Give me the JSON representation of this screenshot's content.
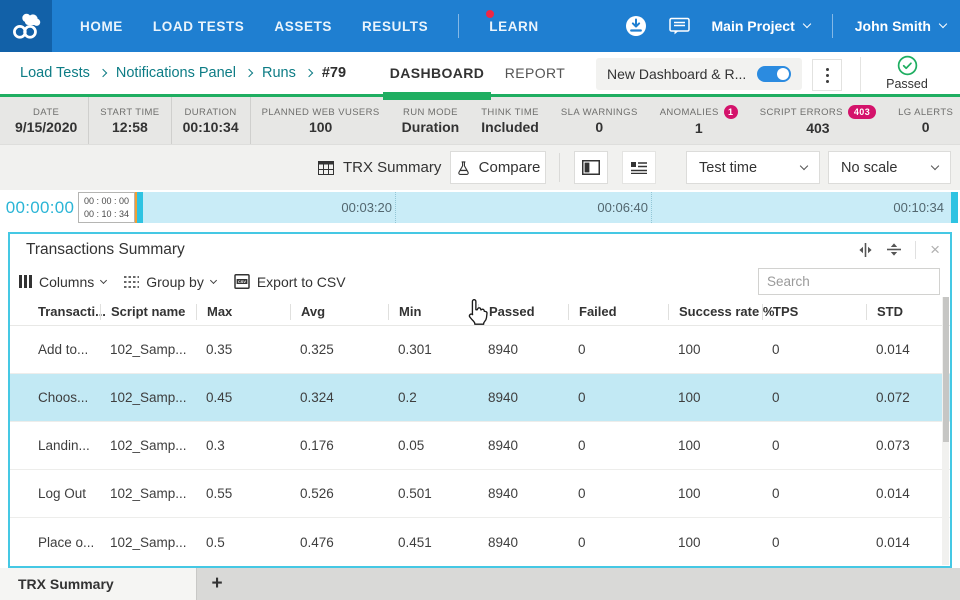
{
  "colors": {
    "nav_blue": "#1f7fd1",
    "logo_blue": "#1261a8",
    "breadcrumb_teal": "#0d7c85",
    "success_green": "#1fae61",
    "alert_pink": "#d4136b",
    "accent_cyan": "#45c8e4",
    "timeline_bg": "#c9ecf7",
    "selected_row_bg": "#c2e9f4"
  },
  "topnav": {
    "nav_items": [
      {
        "label": "HOME",
        "notification": false
      },
      {
        "label": "LOAD TESTS",
        "notification": false
      },
      {
        "label": "ASSETS",
        "notification": false
      },
      {
        "label": "RESULTS",
        "notification": false
      },
      {
        "label": "LEARN",
        "notification": true
      }
    ],
    "project_menu": "Main Project",
    "user_menu": "John Smith"
  },
  "header": {
    "breadcrumb": [
      "Load Tests",
      "Notifications Panel",
      "Runs"
    ],
    "current_run": "#79",
    "tabs": [
      {
        "label": "DASHBOARD",
        "active": true
      },
      {
        "label": "REPORT",
        "active": false
      }
    ],
    "new_dashboard_toggle": {
      "label": "New Dashboard & R...",
      "on": true
    },
    "run_status": "Passed"
  },
  "stats": {
    "left": [
      {
        "label": "DATE",
        "value": "9/15/2020"
      },
      {
        "label": "START TIME",
        "value": "12:58"
      },
      {
        "label": "DURATION",
        "value": "00:10:34"
      },
      {
        "label": "PLANNED WEB VUSERS",
        "value": "100"
      },
      {
        "label": "RUN MODE",
        "value": "Duration"
      },
      {
        "label": "THINK TIME",
        "value": "Included"
      }
    ],
    "right": [
      {
        "label": "SLA WARNINGS",
        "value": "0",
        "badge": null
      },
      {
        "label": "ANOMALIES",
        "value": "1",
        "badge": "1"
      },
      {
        "label": "SCRIPT ERRORS",
        "value": "403",
        "badge": "403"
      },
      {
        "label": "LG ALERTS",
        "value": "0",
        "badge": null
      }
    ]
  },
  "toolbar": {
    "trx_summary": "TRX Summary",
    "compare": "Compare",
    "time_select": "Test time",
    "scale_select": "No scale"
  },
  "timeline": {
    "current_time": "00:00:00",
    "elapsed": "00 : 00 : 00",
    "total": "00 : 10 : 34",
    "ticks": [
      "00:03:20",
      "00:06:40",
      "00:10:34"
    ]
  },
  "panel": {
    "title": "Transactions Summary",
    "toolbar": {
      "columns": "Columns",
      "group_by": "Group by",
      "export_csv": "Export to CSV",
      "search_placeholder": "Search"
    },
    "table": {
      "columns": [
        "Transacti...",
        "Script name",
        "Max",
        "Avg",
        "Min",
        "Passed",
        "Failed",
        "Success rate %",
        "TPS",
        "STD"
      ],
      "rows": [
        {
          "selected": false,
          "cells": [
            "Add to...",
            "102_Samp...",
            "0.35",
            "0.325",
            "0.301",
            "8940",
            "0",
            "100",
            "0",
            "0.014"
          ]
        },
        {
          "selected": true,
          "cells": [
            "Choos...",
            "102_Samp...",
            "0.45",
            "0.324",
            "0.2",
            "8940",
            "0",
            "100",
            "0",
            "0.072"
          ]
        },
        {
          "selected": false,
          "cells": [
            "Landin...",
            "102_Samp...",
            "0.3",
            "0.176",
            "0.05",
            "8940",
            "0",
            "100",
            "0",
            "0.073"
          ]
        },
        {
          "selected": false,
          "cells": [
            "Log Out",
            "102_Samp...",
            "0.55",
            "0.526",
            "0.501",
            "8940",
            "0",
            "100",
            "0",
            "0.014"
          ]
        },
        {
          "selected": false,
          "cells": [
            "Place o...",
            "102_Samp...",
            "0.5",
            "0.476",
            "0.451",
            "8940",
            "0",
            "100",
            "0",
            "0.014"
          ]
        }
      ]
    }
  },
  "tabbar": {
    "active_tab": "TRX Summary",
    "add_button": "+"
  }
}
